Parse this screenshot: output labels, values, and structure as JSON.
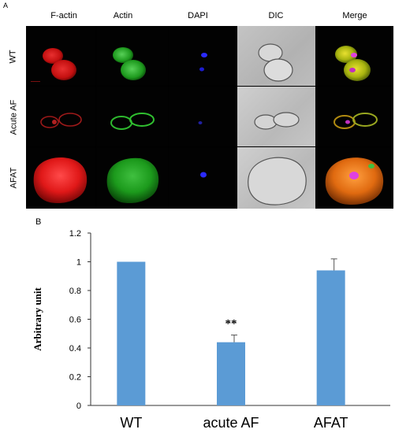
{
  "figure": {
    "panel_a_label": "A",
    "panel_b_label": "B",
    "column_headers": [
      "F-actin",
      "Actin",
      "DAPI",
      "DIC",
      "Merge"
    ],
    "row_labels": [
      "WT",
      "Acute AF",
      "AFAT"
    ]
  },
  "chart_data": {
    "type": "bar",
    "categories": [
      "WT",
      "acute AF",
      "AFAT"
    ],
    "values": [
      1.0,
      0.44,
      0.94
    ],
    "error": [
      0.0,
      0.05,
      0.08
    ],
    "annotations": [
      "",
      "**",
      ""
    ],
    "title": "",
    "xlabel": "",
    "ylabel": "Arbitrary unit",
    "ylim": [
      0,
      1.2
    ],
    "yticks": [
      "0",
      "0.2",
      "0.4",
      "0.6",
      "0.8",
      "1",
      "1.2"
    ],
    "grid": false,
    "bar_color": "#5b9bd5"
  }
}
